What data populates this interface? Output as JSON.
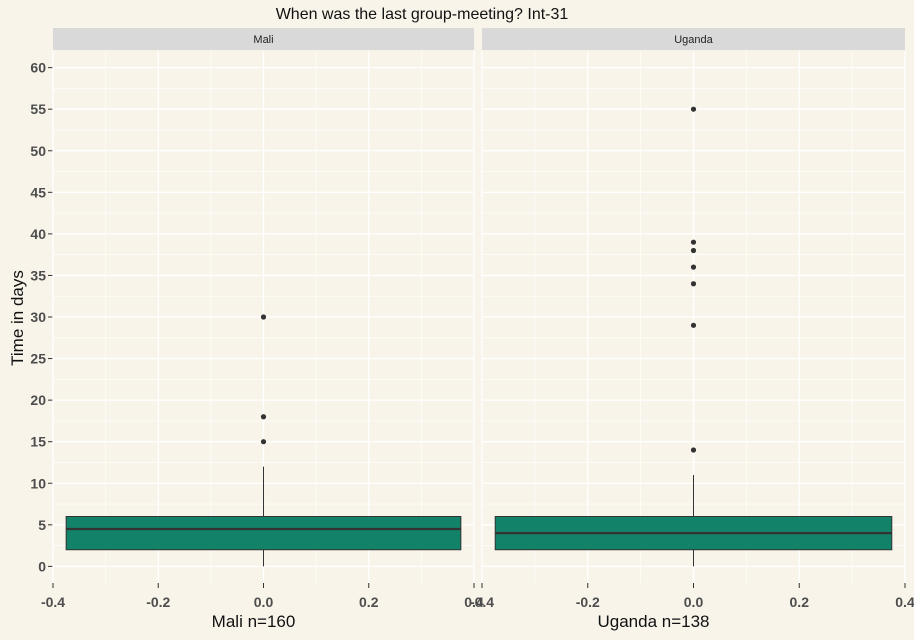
{
  "colors": {
    "background": "#f8f4ea",
    "panel": "#f8f4ea",
    "gridline": "#ffffff",
    "strip": "#d9d9d9",
    "box_fill": "#128368",
    "box_stroke": "#333333",
    "text": "#111111",
    "tick_text": "#4d4d4d"
  },
  "chart_data": {
    "type": "boxplot",
    "title": "When was the last group-meeting? Int-31",
    "ylabel": "Time in days",
    "ylim": [
      -2,
      62
    ],
    "yticks": [
      0,
      5,
      10,
      15,
      20,
      25,
      30,
      35,
      40,
      45,
      50,
      55,
      60
    ],
    "xlim": [
      -0.4,
      0.4
    ],
    "xticks": [
      -0.4,
      -0.2,
      0.0,
      0.2,
      0.4
    ],
    "xtick_labels": [
      "-0.4",
      "-0.2",
      "0.0",
      "0.2",
      "0.4"
    ],
    "grid": true,
    "panels": [
      {
        "strip_label": "Mali",
        "xlabel": "Mali n=160",
        "box": {
          "xmin": -0.375,
          "xmax": 0.375,
          "q1": 2,
          "median": 4.5,
          "q3": 6,
          "whisker_low": 0,
          "whisker_high": 12
        },
        "outliers": [
          15,
          18,
          30
        ]
      },
      {
        "strip_label": "Uganda",
        "xlabel": "Uganda n=138",
        "box": {
          "xmin": -0.375,
          "xmax": 0.375,
          "q1": 2,
          "median": 4,
          "q3": 6,
          "whisker_low": 0,
          "whisker_high": 11
        },
        "outliers": [
          14,
          29,
          34,
          36,
          38,
          39,
          55
        ]
      }
    ]
  }
}
